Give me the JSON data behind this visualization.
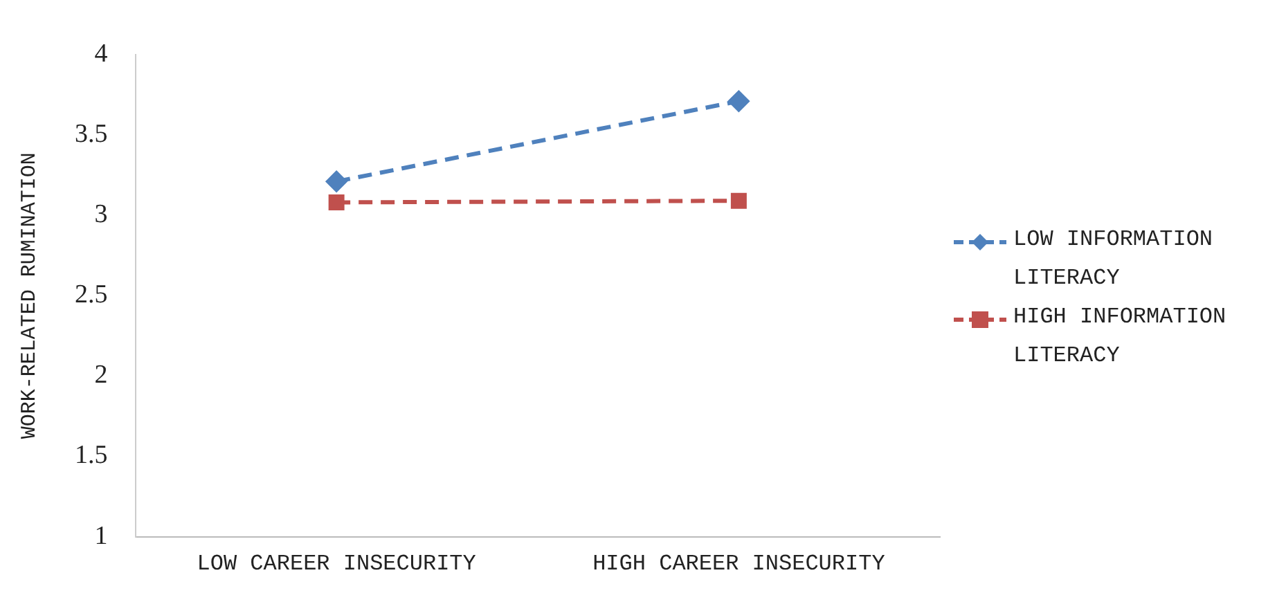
{
  "chart_data": {
    "type": "line",
    "ylabel": "WORK-RELATED RUMINATION",
    "categories": [
      "LOW CAREER INSECURITY",
      "HIGH CAREER INSECURITY"
    ],
    "series": [
      {
        "name": "LOW INFORMATION LITERACY",
        "color": "#4f81bd",
        "values": [
          3.21,
          3.71
        ],
        "marker": "diamond",
        "line_style": "dashed"
      },
      {
        "name": "HIGH INFORMATION LITERACY",
        "color": "#c0504d",
        "values": [
          3.08,
          3.09
        ],
        "marker": "square",
        "line_style": "dashed"
      }
    ],
    "ylim": [
      1,
      4
    ],
    "yticks": [
      1,
      1.5,
      2,
      2.5,
      3,
      3.5,
      4
    ],
    "grid": false,
    "legend": "right"
  }
}
